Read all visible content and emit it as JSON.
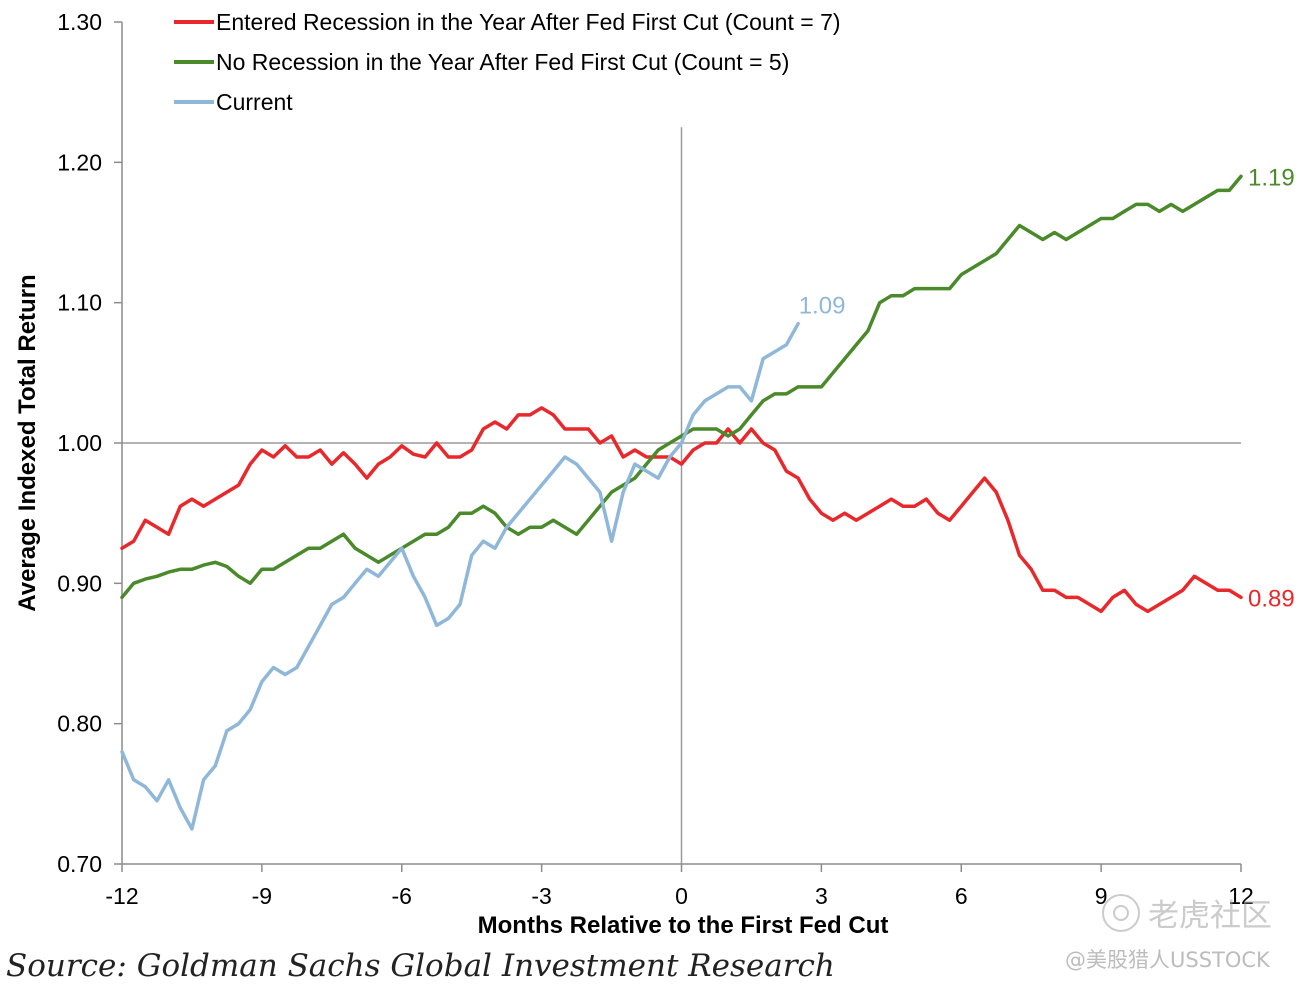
{
  "chart_data": {
    "type": "line",
    "xlabel": "Months Relative to the First Fed Cut",
    "ylabel": "Average Indexed Total Return",
    "xlim": [
      -12,
      12
    ],
    "ylim": [
      0.7,
      1.3
    ],
    "x_ticks": [
      -12,
      -9,
      -6,
      -3,
      0,
      3,
      6,
      9,
      12
    ],
    "x_tick_labels": [
      "-12",
      "-9",
      "-6",
      "-3",
      "0",
      "3",
      "6",
      "9",
      "12"
    ],
    "y_ticks": [
      0.7,
      0.8,
      0.9,
      1.0,
      1.1,
      1.2,
      1.3
    ],
    "y_tick_labels": [
      "0.70",
      "0.80",
      "0.90",
      "1.00",
      "1.10",
      "1.20",
      "1.30"
    ],
    "reference_lines": {
      "horizontal_y": 1.0,
      "vertical_x": 0
    },
    "legend_position": "top-left",
    "series": [
      {
        "name": "Entered Recession in the Year After Fed First Cut (Count = 7)",
        "color": "#e8282b",
        "end_label": "0.89",
        "x": [
          -12,
          -11.75,
          -11.5,
          -11.25,
          -11,
          -10.75,
          -10.5,
          -10.25,
          -10,
          -9.75,
          -9.5,
          -9.25,
          -9,
          -8.75,
          -8.5,
          -8.25,
          -8,
          -7.75,
          -7.5,
          -7.25,
          -7,
          -6.75,
          -6.5,
          -6.25,
          -6,
          -5.75,
          -5.5,
          -5.25,
          -5,
          -4.75,
          -4.5,
          -4.25,
          -4,
          -3.75,
          -3.5,
          -3.25,
          -3,
          -2.75,
          -2.5,
          -2.25,
          -2,
          -1.75,
          -1.5,
          -1.25,
          -1,
          -0.75,
          -0.5,
          -0.25,
          0,
          0.25,
          0.5,
          0.75,
          1,
          1.25,
          1.5,
          1.75,
          2,
          2.25,
          2.5,
          2.75,
          3,
          3.25,
          3.5,
          3.75,
          4,
          4.25,
          4.5,
          4.75,
          5,
          5.25,
          5.5,
          5.75,
          6,
          6.25,
          6.5,
          6.75,
          7,
          7.25,
          7.5,
          7.75,
          8,
          8.25,
          8.5,
          8.75,
          9,
          9.25,
          9.5,
          9.75,
          10,
          10.25,
          10.5,
          10.75,
          11,
          11.25,
          11.5,
          11.75,
          12
        ],
        "y": [
          0.925,
          0.93,
          0.945,
          0.94,
          0.935,
          0.955,
          0.96,
          0.955,
          0.96,
          0.965,
          0.97,
          0.985,
          0.995,
          0.99,
          0.998,
          0.99,
          0.99,
          0.995,
          0.985,
          0.993,
          0.985,
          0.975,
          0.985,
          0.99,
          0.998,
          0.992,
          0.99,
          1.0,
          0.99,
          0.99,
          0.995,
          1.01,
          1.015,
          1.01,
          1.02,
          1.02,
          1.025,
          1.02,
          1.01,
          1.01,
          1.01,
          1.0,
          1.005,
          0.99,
          0.995,
          0.99,
          0.99,
          0.99,
          0.985,
          0.995,
          1.0,
          1.0,
          1.01,
          1.0,
          1.01,
          1.0,
          0.995,
          0.98,
          0.975,
          0.96,
          0.95,
          0.945,
          0.95,
          0.945,
          0.95,
          0.955,
          0.96,
          0.955,
          0.955,
          0.96,
          0.95,
          0.945,
          0.955,
          0.965,
          0.975,
          0.965,
          0.945,
          0.92,
          0.91,
          0.895,
          0.895,
          0.89,
          0.89,
          0.885,
          0.88,
          0.89,
          0.895,
          0.885,
          0.88,
          0.885,
          0.89,
          0.895,
          0.905,
          0.9,
          0.895,
          0.895,
          0.89
        ]
      },
      {
        "name": "No Recession in the Year After Fed First Cut (Count = 5)",
        "color": "#4a8a2a",
        "end_label": "1.19",
        "x": [
          -12,
          -11.75,
          -11.5,
          -11.25,
          -11,
          -10.75,
          -10.5,
          -10.25,
          -10,
          -9.75,
          -9.5,
          -9.25,
          -9,
          -8.75,
          -8.5,
          -8.25,
          -8,
          -7.75,
          -7.5,
          -7.25,
          -7,
          -6.75,
          -6.5,
          -6.25,
          -6,
          -5.75,
          -5.5,
          -5.25,
          -5,
          -4.75,
          -4.5,
          -4.25,
          -4,
          -3.75,
          -3.5,
          -3.25,
          -3,
          -2.75,
          -2.5,
          -2.25,
          -2,
          -1.75,
          -1.5,
          -1.25,
          -1,
          -0.75,
          -0.5,
          -0.25,
          0,
          0.25,
          0.5,
          0.75,
          1,
          1.25,
          1.5,
          1.75,
          2,
          2.25,
          2.5,
          2.75,
          3,
          3.25,
          3.5,
          3.75,
          4,
          4.25,
          4.5,
          4.75,
          5,
          5.25,
          5.5,
          5.75,
          6,
          6.25,
          6.5,
          6.75,
          7,
          7.25,
          7.5,
          7.75,
          8,
          8.25,
          8.5,
          8.75,
          9,
          9.25,
          9.5,
          9.75,
          10,
          10.25,
          10.5,
          10.75,
          11,
          11.25,
          11.5,
          11.75,
          12
        ],
        "y": [
          0.89,
          0.9,
          0.903,
          0.905,
          0.908,
          0.91,
          0.91,
          0.913,
          0.915,
          0.912,
          0.905,
          0.9,
          0.91,
          0.91,
          0.915,
          0.92,
          0.925,
          0.925,
          0.93,
          0.935,
          0.925,
          0.92,
          0.915,
          0.92,
          0.925,
          0.93,
          0.935,
          0.935,
          0.94,
          0.95,
          0.95,
          0.955,
          0.95,
          0.94,
          0.935,
          0.94,
          0.94,
          0.945,
          0.94,
          0.935,
          0.945,
          0.955,
          0.965,
          0.97,
          0.975,
          0.985,
          0.995,
          1.0,
          1.005,
          1.01,
          1.01,
          1.01,
          1.005,
          1.01,
          1.02,
          1.03,
          1.035,
          1.035,
          1.04,
          1.04,
          1.04,
          1.05,
          1.06,
          1.07,
          1.08,
          1.1,
          1.105,
          1.105,
          1.11,
          1.11,
          1.11,
          1.11,
          1.12,
          1.125,
          1.13,
          1.135,
          1.145,
          1.155,
          1.15,
          1.145,
          1.15,
          1.145,
          1.15,
          1.155,
          1.16,
          1.16,
          1.165,
          1.17,
          1.17,
          1.165,
          1.17,
          1.165,
          1.17,
          1.175,
          1.18,
          1.18,
          1.19
        ]
      },
      {
        "name": "Current",
        "color": "#8fb7d9",
        "end_label": "1.09",
        "x": [
          -12,
          -11.75,
          -11.5,
          -11.25,
          -11,
          -10.75,
          -10.5,
          -10.25,
          -10,
          -9.75,
          -9.5,
          -9.25,
          -9,
          -8.75,
          -8.5,
          -8.25,
          -8,
          -7.75,
          -7.5,
          -7.25,
          -7,
          -6.75,
          -6.5,
          -6.25,
          -6,
          -5.75,
          -5.5,
          -5.25,
          -5,
          -4.75,
          -4.5,
          -4.25,
          -4,
          -3.75,
          -3.5,
          -3.25,
          -3,
          -2.75,
          -2.5,
          -2.25,
          -2,
          -1.75,
          -1.5,
          -1.25,
          -1,
          -0.75,
          -0.5,
          -0.25,
          0,
          0.25,
          0.5,
          0.75,
          1,
          1.25,
          1.5,
          1.75,
          2,
          2.25,
          2.5
        ],
        "y": [
          0.78,
          0.76,
          0.755,
          0.745,
          0.76,
          0.74,
          0.725,
          0.76,
          0.77,
          0.795,
          0.8,
          0.81,
          0.83,
          0.84,
          0.835,
          0.84,
          0.855,
          0.87,
          0.885,
          0.89,
          0.9,
          0.91,
          0.905,
          0.915,
          0.925,
          0.905,
          0.89,
          0.87,
          0.875,
          0.885,
          0.92,
          0.93,
          0.925,
          0.94,
          0.95,
          0.96,
          0.97,
          0.98,
          0.99,
          0.985,
          0.975,
          0.965,
          0.93,
          0.965,
          0.985,
          0.98,
          0.975,
          0.99,
          1.0,
          1.02,
          1.03,
          1.035,
          1.04,
          1.04,
          1.03,
          1.06,
          1.065,
          1.07,
          1.085
        ]
      }
    ]
  },
  "source": "Source: Goldman Sachs Global Investment Research",
  "watermark": {
    "brand": "老虎社区",
    "handle": "@美股猎人USSTOCK"
  }
}
